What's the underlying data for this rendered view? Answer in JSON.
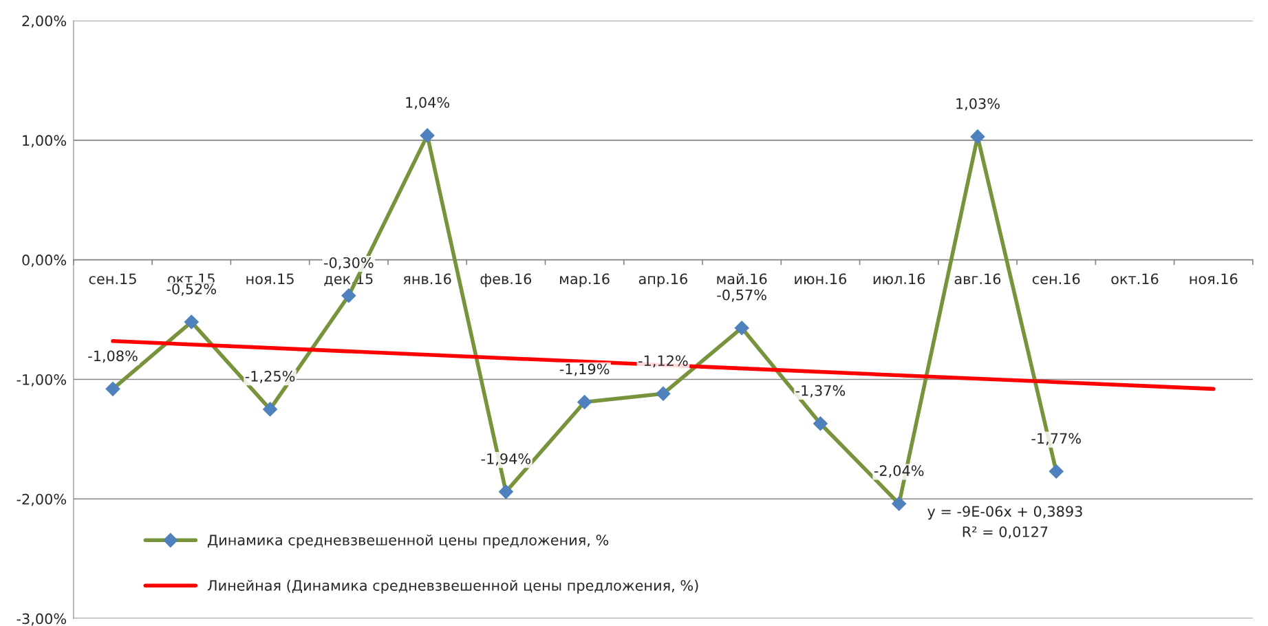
{
  "chart_data": {
    "type": "line",
    "categories": [
      "сен.15",
      "окт.15",
      "ноя.15",
      "дек.15",
      "янв.16",
      "фев.16",
      "мар.16",
      "апр.16",
      "май.16",
      "июн.16",
      "июл.16",
      "авг.16",
      "сен.16",
      "окт.16",
      "ноя.16"
    ],
    "series": [
      {
        "name": "Динамика средневзвешенной цены предложения, %",
        "color": "#77933c",
        "colors": [
          "#4f81bd",
          "#4f81bd",
          "#4f81bd",
          "#4f81bd",
          "#4f81bd",
          "#4f81bd",
          "#4f81bd",
          "#4f81bd",
          "#4f81bd",
          "#4f81bd",
          "#4f81bd",
          "#4f81bd",
          "#4f81bd",
          "#4f81bd",
          "#4f81bd"
        ],
        "marker": "diamond",
        "values": [
          -1.08,
          -0.52,
          -1.25,
          -0.3,
          1.04,
          -1.94,
          -1.19,
          -1.12,
          -0.57,
          -1.37,
          -2.04,
          1.03,
          -1.77,
          null,
          null
        ],
        "value_labels": [
          "-1,08%",
          "-0,52%",
          "-1,25%",
          "-0,30%",
          "1,04%",
          "-1,94%",
          "-1,19%",
          "-1,12%",
          "-0,57%",
          "-1,37%",
          "-2,04%",
          "1,03%",
          "-1,77%",
          null,
          null
        ]
      },
      {
        "name": "Линейная (Динамика средневзвешенной цены предложения, %)",
        "type": "line",
        "color": "#ff0000",
        "marker": "none",
        "values": [
          -0.68,
          null,
          null,
          null,
          null,
          null,
          null,
          null,
          null,
          null,
          null,
          null,
          null,
          null,
          -1.08
        ]
      }
    ],
    "ylim": [
      -3,
      2
    ],
    "yticks": [
      {
        "value": -3,
        "label": "-3,00%"
      },
      {
        "value": -2,
        "label": "-2,00%"
      },
      {
        "value": -1,
        "label": "-1,00%"
      },
      {
        "value": 0,
        "label": "0,00%"
      },
      {
        "value": 1,
        "label": "1,00%"
      },
      {
        "value": 2,
        "label": "2,00%"
      }
    ],
    "grid": "y",
    "legend": "bottom left",
    "annotations": [
      "y = -9E-06x + 0,3893",
      "R² = 0,0127"
    ]
  }
}
